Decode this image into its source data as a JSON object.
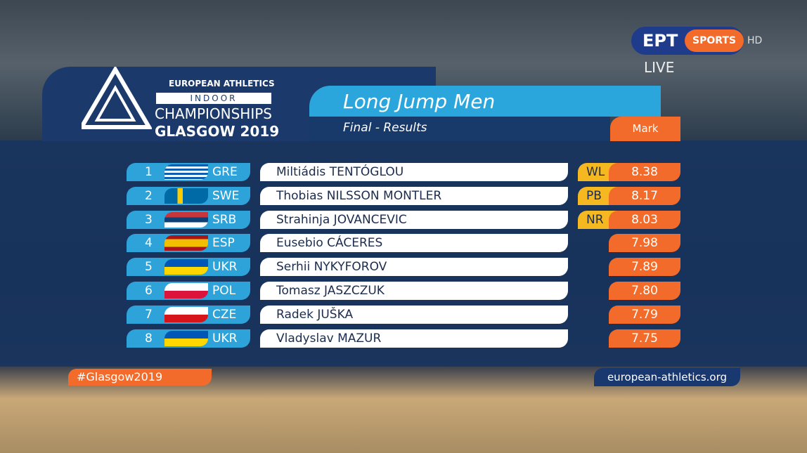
{
  "broadcaster": {
    "name": "EPT",
    "channel": "SPORTS",
    "quality": "HD",
    "status": "LIVE"
  },
  "event_logo": {
    "line1": "EUROPEAN ATHLETICS",
    "line2": "INDOOR",
    "line3": "CHAMPIONSHIPS",
    "line4": "GLASGOW 2019"
  },
  "header": {
    "title": "Long Jump Men",
    "subtitle": "Final - Results",
    "column": "Mark"
  },
  "table": {
    "rows": [
      {
        "rank": 1,
        "country": "GRE",
        "name": "Miltiádis TENTÓGLOU",
        "record": "WL",
        "mark": "8.38"
      },
      {
        "rank": 2,
        "country": "SWE",
        "name": "Thobias NILSSON MONTLER",
        "record": "PB",
        "mark": "8.17"
      },
      {
        "rank": 3,
        "country": "SRB",
        "name": "Strahinja JOVANCEVIC",
        "record": "NR",
        "mark": "8.03"
      },
      {
        "rank": 4,
        "country": "ESP",
        "name": "Eusebio CÁCERES",
        "mark": "7.98"
      },
      {
        "rank": 5,
        "country": "UKR",
        "name": "Serhii NYKYFOROV",
        "mark": "7.89"
      },
      {
        "rank": 6,
        "country": "POL",
        "name": "Tomasz JASZCZUK",
        "mark": "7.80"
      },
      {
        "rank": 7,
        "country": "CZE",
        "name": "Radek JUŠKA",
        "mark": "7.79"
      },
      {
        "rank": 8,
        "country": "UKR",
        "name": "Vladyslav MAZUR",
        "mark": "7.75"
      }
    ]
  },
  "footer": {
    "hashtag": "#Glasgow2019",
    "website": "european-athletics.org"
  }
}
